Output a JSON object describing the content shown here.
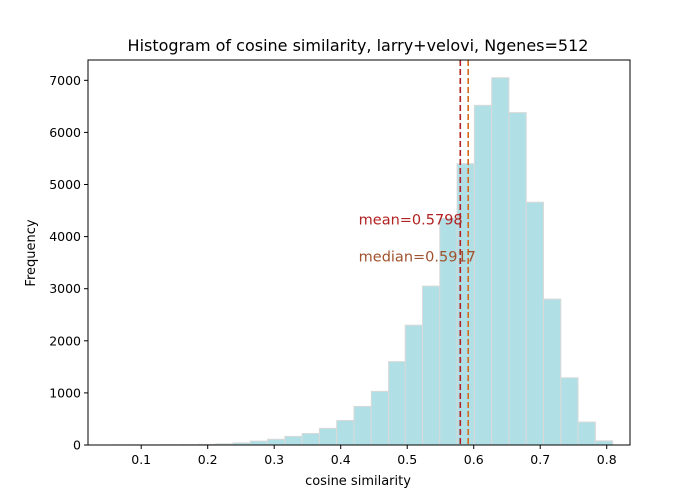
{
  "chart_data": {
    "type": "bar",
    "title": "Histogram of cosine similarity, larry+velovi, Ngenes=512",
    "xlabel": "cosine similarity",
    "ylabel": "Frequency",
    "xlim": [
      0.02,
      0.835
    ],
    "ylim": [
      0,
      7390
    ],
    "xticks": [
      0.1,
      0.2,
      0.3,
      0.4,
      0.5,
      0.6,
      0.7,
      0.8
    ],
    "yticks": [
      0,
      1000,
      2000,
      3000,
      4000,
      5000,
      6000,
      7000
    ],
    "bin_width": 0.0259,
    "bins": [
      {
        "x0": 0.057,
        "count": 2
      },
      {
        "x0": 0.083,
        "count": 3
      },
      {
        "x0": 0.109,
        "count": 4
      },
      {
        "x0": 0.135,
        "count": 5
      },
      {
        "x0": 0.16,
        "count": 7
      },
      {
        "x0": 0.186,
        "count": 12
      },
      {
        "x0": 0.212,
        "count": 22
      },
      {
        "x0": 0.238,
        "count": 40
      },
      {
        "x0": 0.264,
        "count": 75
      },
      {
        "x0": 0.29,
        "count": 110
      },
      {
        "x0": 0.316,
        "count": 165
      },
      {
        "x0": 0.342,
        "count": 220
      },
      {
        "x0": 0.368,
        "count": 320
      },
      {
        "x0": 0.394,
        "count": 470
      },
      {
        "x0": 0.42,
        "count": 740
      },
      {
        "x0": 0.446,
        "count": 1030
      },
      {
        "x0": 0.472,
        "count": 1600
      },
      {
        "x0": 0.497,
        "count": 2300
      },
      {
        "x0": 0.523,
        "count": 3050
      },
      {
        "x0": 0.549,
        "count": 4350
      },
      {
        "x0": 0.575,
        "count": 5400
      },
      {
        "x0": 0.601,
        "count": 6520
      },
      {
        "x0": 0.627,
        "count": 7050
      },
      {
        "x0": 0.653,
        "count": 6380
      },
      {
        "x0": 0.679,
        "count": 4660
      },
      {
        "x0": 0.705,
        "count": 2800
      },
      {
        "x0": 0.731,
        "count": 1290
      },
      {
        "x0": 0.757,
        "count": 440
      },
      {
        "x0": 0.783,
        "count": 80
      }
    ],
    "bar_color": "#b0dfe5",
    "bar_edge_color": "#d9d9d9",
    "mean": {
      "value": 0.5798,
      "label": "mean=0.5798",
      "color": "#b22222"
    },
    "median": {
      "value": 0.5917,
      "label": "median=0.5917",
      "color": "#d2691e",
      "text_color": "#a0522d"
    },
    "grid": false,
    "legend": "none"
  }
}
